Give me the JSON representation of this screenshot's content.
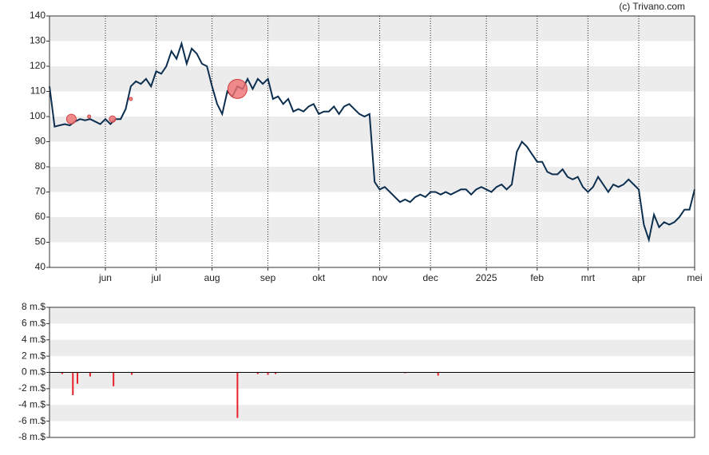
{
  "chart_data": [
    {
      "type": "line",
      "annotation": "(c) Trivano.com",
      "color": "#0d2f4f",
      "xlim": [
        0,
        127
      ],
      "ylim": [
        40,
        140
      ],
      "yticks": [
        40,
        50,
        60,
        70,
        80,
        90,
        100,
        110,
        120,
        130,
        140
      ],
      "xticks": [
        {
          "value": 11,
          "label": "jun"
        },
        {
          "value": 21,
          "label": "jul"
        },
        {
          "value": 32,
          "label": "aug"
        },
        {
          "value": 43,
          "label": "sep"
        },
        {
          "value": 53,
          "label": "okt"
        },
        {
          "value": 65,
          "label": "nov"
        },
        {
          "value": 75,
          "label": "dec"
        },
        {
          "value": 86,
          "label": "2025"
        },
        {
          "value": 96,
          "label": "feb"
        },
        {
          "value": 106,
          "label": "mrt"
        },
        {
          "value": 116,
          "label": "apr"
        },
        {
          "value": 127,
          "label": "mei"
        }
      ],
      "grid": true,
      "values": [
        112,
        96,
        96.5,
        97,
        96.5,
        98,
        99,
        98.5,
        99,
        98,
        97,
        99,
        97,
        99,
        99,
        103,
        112,
        114,
        113,
        115,
        112,
        118,
        117,
        120,
        126,
        123,
        129,
        121,
        127,
        125,
        121,
        120,
        112,
        105,
        101,
        110,
        108,
        112,
        111,
        115,
        111,
        115,
        113,
        115,
        107,
        108,
        105,
        107,
        102,
        103,
        102,
        104,
        105,
        101,
        102,
        102,
        104,
        101,
        104,
        105,
        103,
        101,
        100,
        101,
        74,
        71,
        72,
        70,
        68,
        66,
        67,
        66,
        68,
        69,
        68,
        70,
        70,
        69,
        70,
        69,
        70,
        71,
        71,
        69,
        71,
        72,
        71,
        70,
        72,
        73,
        71,
        73,
        86,
        90,
        88,
        85,
        82,
        82,
        78,
        77,
        77,
        79,
        76,
        75,
        76,
        72,
        70,
        72,
        76,
        73,
        70,
        73,
        72,
        73,
        75,
        73,
        71,
        57,
        51,
        61,
        56,
        58,
        57,
        58,
        60,
        63,
        63,
        71
      ],
      "markers": {
        "color": "#f07070",
        "x": [
          4.3,
          12.4,
          7.8,
          16,
          37
        ],
        "values": [
          99,
          99,
          100,
          107,
          111
        ],
        "sizes": [
          6,
          4,
          2,
          2,
          12
        ]
      }
    },
    {
      "type": "bar",
      "color": "#e8202a",
      "xlim": [
        0,
        127
      ],
      "ylim": [
        -8,
        8
      ],
      "yticks": [
        {
          "value": -8,
          "label": "-8 m.$"
        },
        {
          "value": -6,
          "label": "-6 m.$"
        },
        {
          "value": -4,
          "label": "-4 m.$"
        },
        {
          "value": -2,
          "label": "-2 m.$"
        },
        {
          "value": 0,
          "label": "0 m.$"
        },
        {
          "value": 2,
          "label": "2 m.$"
        },
        {
          "value": 4,
          "label": "4 m.$"
        },
        {
          "value": 6,
          "label": "6 m.$"
        },
        {
          "value": 8,
          "label": "8 m.$"
        }
      ],
      "grid": true,
      "x": [
        2.5,
        4.6,
        5.5,
        8,
        12.6,
        16.2,
        37,
        41,
        43,
        44.5,
        70,
        76.5
      ],
      "values": [
        -0.2,
        -2.8,
        -1.4,
        -0.5,
        -1.7,
        -0.3,
        -5.6,
        -0.2,
        -0.3,
        -0.2,
        -0.1,
        -0.4
      ]
    }
  ]
}
